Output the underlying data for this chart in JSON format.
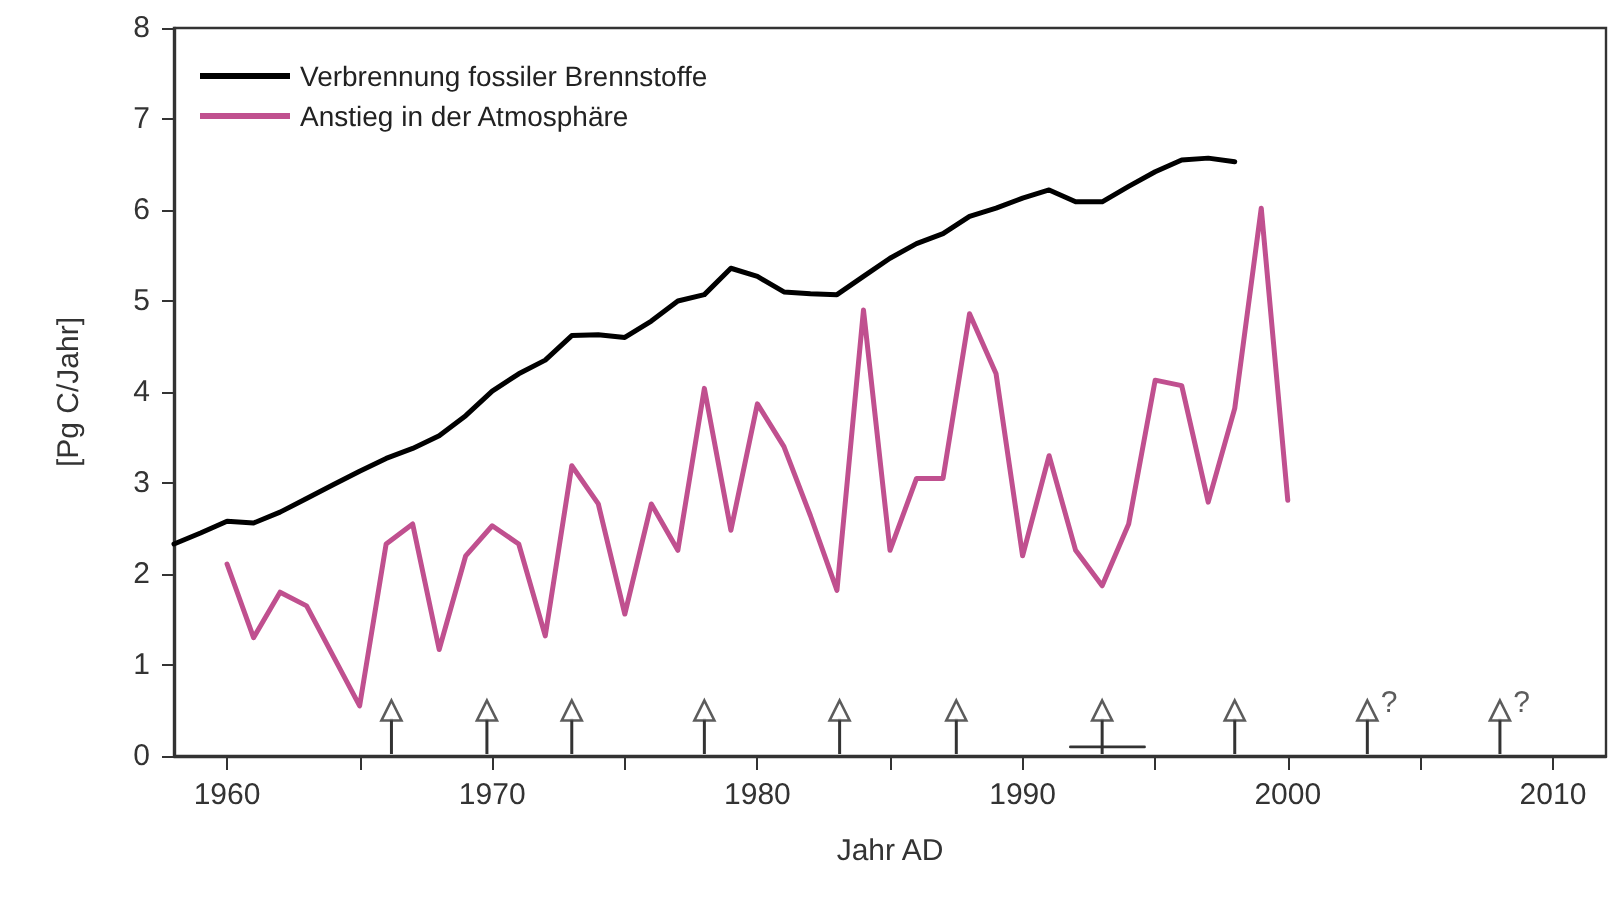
{
  "chart_data": {
    "type": "line",
    "xlabel": "Jahr AD",
    "ylabel": "[Pg C/Jahr]",
    "xlim": [
      1958,
      2012
    ],
    "xticks": [
      1960,
      {
        "value": 1965,
        "label": null
      },
      1970,
      {
        "value": 1975,
        "label": null
      },
      1980,
      {
        "value": 1985,
        "label": null
      },
      1990,
      {
        "value": 1995,
        "label": null
      },
      2000,
      {
        "value": 2005,
        "label": null
      },
      2010
    ],
    "ylim": [
      0,
      8
    ],
    "yticks": [
      0,
      1,
      2,
      3,
      4,
      5,
      6,
      7,
      8
    ],
    "grid": false,
    "legend": "top left",
    "marker": "none",
    "line_style": "solid",
    "series": [
      {
        "name": "Verbrennung fossiler Brennstoffe",
        "color": "#000000",
        "x": [
          1958,
          1959,
          1960,
          1961,
          1962,
          1963,
          1964,
          1965,
          1966,
          1967,
          1968,
          1969,
          1970,
          1971,
          1972,
          1973,
          1974,
          1975,
          1976,
          1977,
          1978,
          1979,
          1980,
          1981,
          1982,
          1983,
          1984,
          1985,
          1986,
          1987,
          1988,
          1989,
          1990,
          1991,
          1992,
          1993,
          1994,
          1995,
          1996,
          1997,
          1998
        ],
        "values": [
          2.33,
          2.45,
          2.58,
          2.56,
          2.68,
          2.83,
          2.98,
          3.13,
          3.27,
          3.38,
          3.52,
          3.74,
          4.01,
          4.2,
          4.35,
          4.62,
          4.63,
          4.6,
          4.78,
          5.0,
          5.07,
          5.36,
          5.27,
          5.1,
          5.08,
          5.07,
          5.27,
          5.47,
          5.63,
          5.74,
          5.93,
          6.02,
          6.13,
          6.22,
          6.09,
          6.09,
          6.26,
          6.42,
          6.55,
          6.57,
          6.53
        ]
      },
      {
        "name": "Anstieg in der Atmosphäre",
        "color": "#c0508f",
        "x": [
          1960,
          1961,
          1962,
          1963,
          1964,
          1965,
          1966,
          1967,
          1968,
          1969,
          1970,
          1971,
          1972,
          1973,
          1974,
          1975,
          1976,
          1977,
          1978,
          1979,
          1980,
          1981,
          1982,
          1983,
          1984,
          1985,
          1986,
          1987,
          1988,
          1989,
          1990,
          1991,
          1992,
          1993,
          1994,
          1995,
          1996,
          1997,
          1998,
          1999,
          2000
        ],
        "values": [
          2.11,
          1.3,
          1.8,
          1.65,
          1.1,
          0.55,
          2.33,
          2.55,
          1.17,
          2.2,
          2.53,
          2.33,
          1.32,
          3.19,
          2.77,
          1.56,
          2.77,
          2.26,
          4.04,
          2.48,
          3.87,
          3.4,
          2.64,
          1.82,
          4.9,
          2.26,
          3.05,
          3.05,
          4.86,
          4.2,
          2.2,
          3.3,
          2.26,
          1.87,
          2.55,
          4.13,
          4.07,
          2.79,
          3.82,
          6.02,
          2.81
        ]
      },
      {
        "type": "lollipop",
        "marker": "triangle",
        "color": "#333333",
        "x": [
          1966.2,
          1969.8,
          1973,
          1978,
          1983.1,
          1987.5,
          1993,
          1998,
          2003,
          2008
        ],
        "values": [
          0.5,
          0.5,
          0.5,
          0.5,
          0.5,
          0.5,
          0.5,
          0.5,
          0.5,
          0.5
        ],
        "value_labels": [
          null,
          null,
          null,
          null,
          null,
          null,
          null,
          null,
          "?",
          "?"
        ]
      },
      {
        "color": "#333333",
        "x": [
          1991.8,
          1994.6
        ],
        "values": [
          0.1,
          0.1
        ]
      }
    ]
  }
}
